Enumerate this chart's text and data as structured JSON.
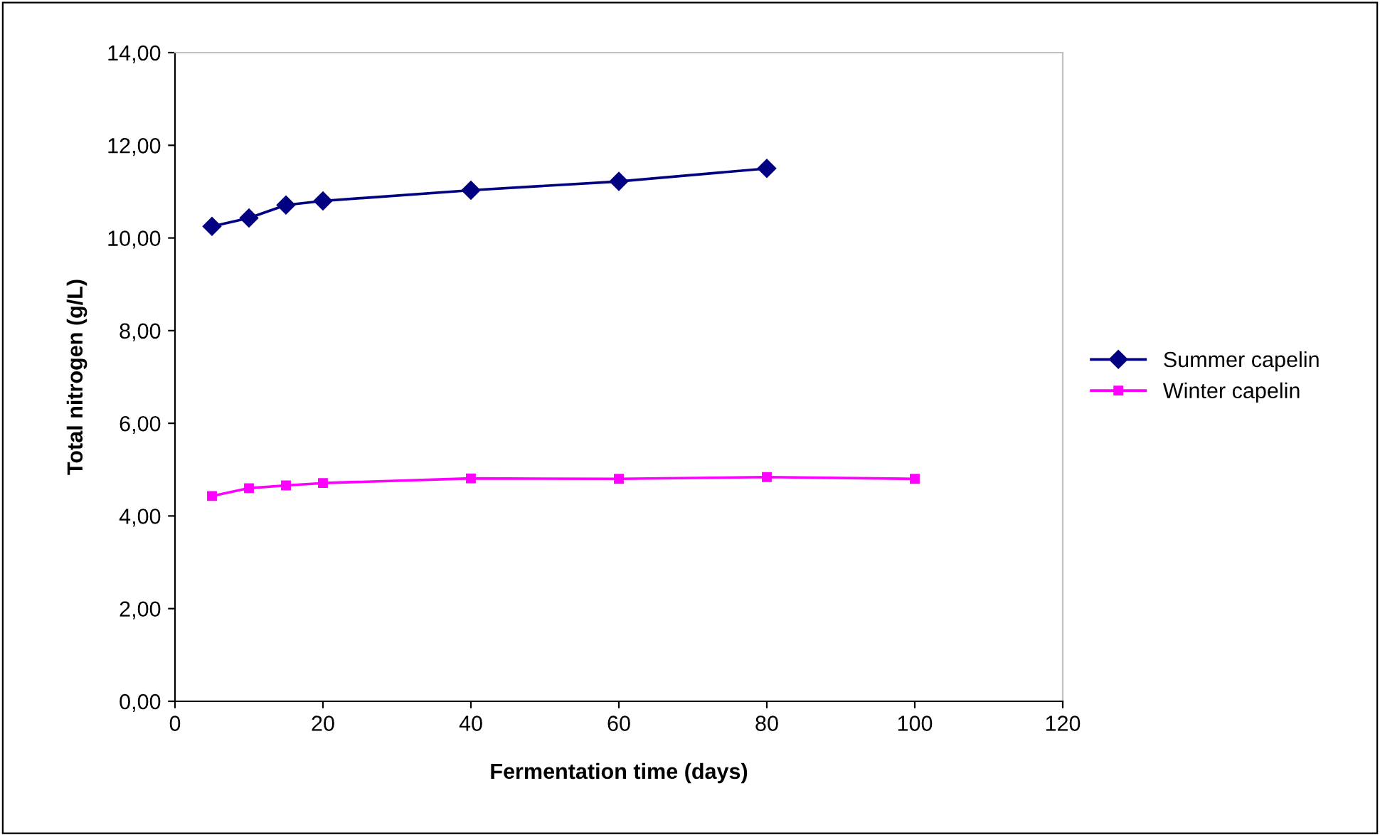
{
  "chart_data": {
    "type": "line",
    "xlabel": "Fermentation time (days)",
    "ylabel": "Total nitrogen (g/L)",
    "xlim": [
      0,
      120
    ],
    "xticks": [
      0,
      20,
      40,
      60,
      80,
      100,
      120
    ],
    "ylim": [
      0,
      14
    ],
    "yticks": [
      {
        "value": 0,
        "label": "0,00"
      },
      {
        "value": 2,
        "label": "2,00"
      },
      {
        "value": 4,
        "label": "4,00"
      },
      {
        "value": 6,
        "label": "6,00"
      },
      {
        "value": 8,
        "label": "8,00"
      },
      {
        "value": 10,
        "label": "10,00"
      },
      {
        "value": 12,
        "label": "12,00"
      },
      {
        "value": 14,
        "label": "14,00"
      }
    ],
    "grid": false,
    "legend": "right",
    "series": [
      {
        "name": "Summer capelin",
        "color": "#000080",
        "marker": "diamond",
        "x": [
          5,
          10,
          15,
          20,
          40,
          60,
          80
        ],
        "values": [
          10.25,
          10.43,
          10.71,
          10.8,
          11.03,
          11.22,
          11.5
        ]
      },
      {
        "name": "Winter capelin",
        "color": "#ff00ff",
        "marker": "square",
        "x": [
          5,
          10,
          15,
          20,
          40,
          60,
          80,
          100
        ],
        "values": [
          4.43,
          4.6,
          4.66,
          4.71,
          4.81,
          4.8,
          4.84,
          4.8
        ]
      }
    ]
  }
}
